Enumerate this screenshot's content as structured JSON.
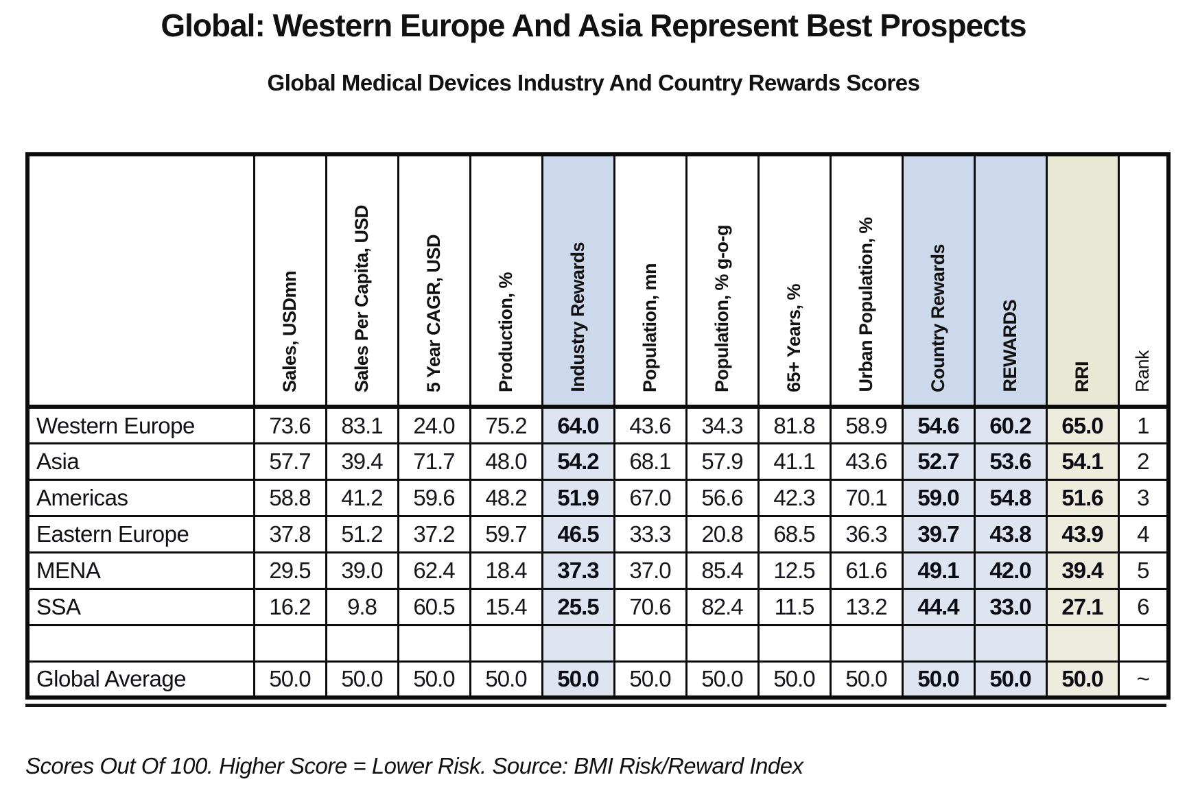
{
  "page": {
    "title": "Global: Western Europe And Asia Represent Best Prospects",
    "subtitle": "Global Medical Devices Industry And Country Rewards Scores",
    "footnote": "Scores Out Of 100. Higher Score = Lower Risk. Source: BMI Risk/Reward Index"
  },
  "colors": {
    "blue_header": "#ccd8ec",
    "blue_cell": "#dee5f0",
    "tan_header": "#e9e8d5",
    "tan_cell": "#edecdd",
    "border": "#0c0c0c"
  },
  "chart_data": {
    "type": "table",
    "title": "Global Medical Devices Industry And Country Rewards Scores",
    "row_header": "",
    "columns": [
      {
        "label": "Sales, USDmn",
        "style": "plain",
        "bold_header": true
      },
      {
        "label": "Sales Per Capita, USD",
        "style": "plain",
        "bold_header": true
      },
      {
        "label": "5 Year CAGR, USD",
        "style": "plain",
        "bold_header": true
      },
      {
        "label": "Production, %",
        "style": "plain",
        "bold_header": true
      },
      {
        "label": "Industry Rewards",
        "style": "blue",
        "bold_header": true
      },
      {
        "label": "Population, mn",
        "style": "plain",
        "bold_header": true
      },
      {
        "label": "Population, % g-o-g",
        "style": "plain",
        "bold_header": true
      },
      {
        "label": "65+ Years, %",
        "style": "plain",
        "bold_header": true
      },
      {
        "label": "Urban Population, %",
        "style": "plain",
        "bold_header": true
      },
      {
        "label": "Country Rewards",
        "style": "blue",
        "bold_header": true
      },
      {
        "label": "REWARDS",
        "style": "blue",
        "bold_header": true
      },
      {
        "label": "RRI",
        "style": "tan",
        "bold_header": true
      },
      {
        "label": "Rank",
        "style": "plain",
        "bold_header": false
      }
    ],
    "rows": [
      {
        "label": "Western Europe",
        "values": [
          "73.6",
          "83.1",
          "24.0",
          "75.2",
          "64.0",
          "43.6",
          "34.3",
          "81.8",
          "58.9",
          "54.6",
          "60.2",
          "65.0",
          "1"
        ]
      },
      {
        "label": "Asia",
        "values": [
          "57.7",
          "39.4",
          "71.7",
          "48.0",
          "54.2",
          "68.1",
          "57.9",
          "41.1",
          "43.6",
          "52.7",
          "53.6",
          "54.1",
          "2"
        ]
      },
      {
        "label": "Americas",
        "values": [
          "58.8",
          "41.2",
          "59.6",
          "48.2",
          "51.9",
          "67.0",
          "56.6",
          "42.3",
          "70.1",
          "59.0",
          "54.8",
          "51.6",
          "3"
        ]
      },
      {
        "label": "Eastern Europe",
        "values": [
          "37.8",
          "51.2",
          "37.2",
          "59.7",
          "46.5",
          "33.3",
          "20.8",
          "68.5",
          "36.3",
          "39.7",
          "43.8",
          "43.9",
          "4"
        ]
      },
      {
        "label": "MENA",
        "values": [
          "29.5",
          "39.0",
          "62.4",
          "18.4",
          "37.3",
          "37.0",
          "85.4",
          "12.5",
          "61.6",
          "49.1",
          "42.0",
          "39.4",
          "5"
        ]
      },
      {
        "label": "SSA",
        "values": [
          "16.2",
          "9.8",
          "60.5",
          "15.4",
          "25.5",
          "70.6",
          "82.4",
          "11.5",
          "13.2",
          "44.4",
          "33.0",
          "27.1",
          "6"
        ]
      },
      {
        "label": "",
        "values": [
          "",
          "",
          "",
          "",
          "",
          "",
          "",
          "",
          "",
          "",
          "",
          "",
          ""
        ]
      },
      {
        "label": "Global Average",
        "values": [
          "50.0",
          "50.0",
          "50.0",
          "50.0",
          "50.0",
          "50.0",
          "50.0",
          "50.0",
          "50.0",
          "50.0",
          "50.0",
          "50.0",
          "~"
        ]
      }
    ],
    "notes": "Scores Out Of 100. Higher Score = Lower Risk. Source: BMI Risk/Reward Index"
  }
}
